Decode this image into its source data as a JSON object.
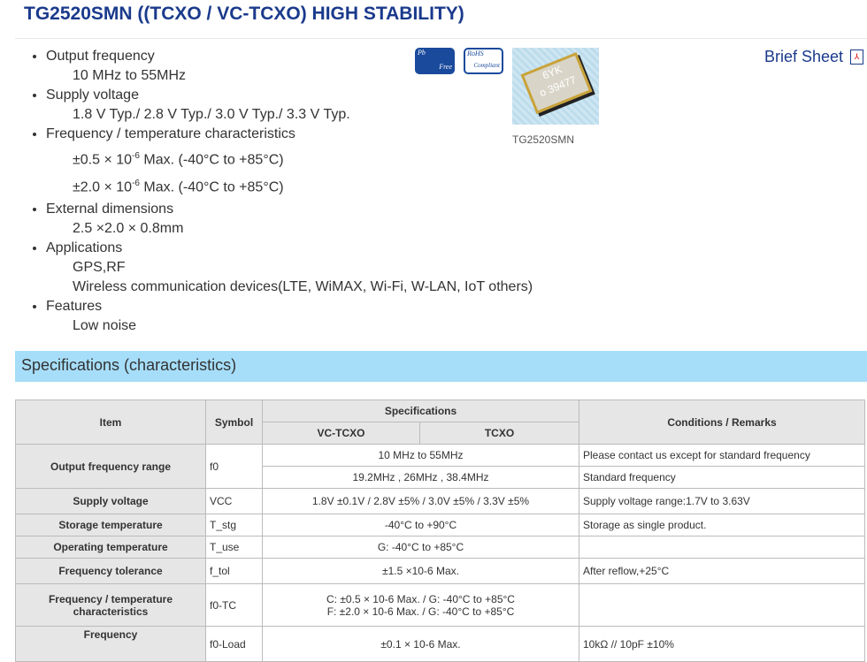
{
  "title": "TG2520SMN ((TCXO / VC-TCXO) HIGH STABILITY)",
  "features": [
    {
      "label": "Output frequency",
      "values": [
        "10 MHz to 55MHz"
      ]
    },
    {
      "label": "Supply voltage",
      "values": [
        "1.8 V Typ./ 2.8 V Typ./ 3.0 V Typ./ 3.3 V Typ."
      ]
    },
    {
      "label": "Frequency / temperature characteristics",
      "values": [
        "±0.5 × 10",
        "-6",
        " Max. (-40°C to +85°C)",
        "±2.0 × 10",
        "-6",
        " Max. (-40°C to +85°C)"
      ]
    },
    {
      "label": "External dimensions",
      "values": [
        "2.5 ×2.0 × 0.8mm"
      ]
    },
    {
      "label": "Applications",
      "values": [
        "GPS,RF",
        "Wireless communication devices(LTE, WiMAX, Wi-Fi, W-LAN, IoT others)"
      ]
    },
    {
      "label": "Features",
      "values": [
        "Low noise"
      ]
    }
  ],
  "badges": {
    "pb": [
      "Pb",
      "Free"
    ],
    "rohs": [
      "RoHS",
      "Compliant"
    ]
  },
  "product_image": {
    "marking": [
      "6YK",
      "o 39477"
    ],
    "caption": "TG2520SMN"
  },
  "brief_sheet": "Brief Sheet",
  "spec_heading": "Specifications (characteristics)",
  "table": {
    "headers": {
      "item": "Item",
      "symbol": "Symbol",
      "specs": "Specifications",
      "vc": "VC-TCXO",
      "tcxo": "TCXO",
      "cond": "Conditions / Remarks"
    },
    "rows": [
      {
        "item": "Output frequency range",
        "symbol": "f0",
        "spec": "10 MHz to 55MHz",
        "cond": "Please contact us except for standard frequency"
      },
      {
        "spec": "19.2MHz , 26MHz , 38.4MHz",
        "cond": "Standard frequency"
      },
      {
        "item": "Supply voltage",
        "symbol": "VCC",
        "spec": "1.8V ±0.1V / 2.8V ±5% / 3.0V ±5% / 3.3V ±5%",
        "cond": "Supply voltage range:1.7V to 3.63V"
      },
      {
        "item": "Storage temperature",
        "symbol": "T_stg",
        "spec": "-40°C to +90°C",
        "cond": "Storage as single product."
      },
      {
        "item": "Operating temperature",
        "symbol": "T_use",
        "spec": "G: -40°C to +85°C",
        "cond": ""
      },
      {
        "item": "Frequency tolerance",
        "symbol": "f_tol",
        "spec": "±1.5 ×10-6 Max.",
        "cond": "After reflow,+25°C"
      },
      {
        "item": "Frequency / temperature characteristics",
        "symbol": "f0-TC",
        "spec": "C: ±0.5 × 10-6 Max. / G: -40°C to +85°C",
        "spec2": "F: ±2.0 × 10-6 Max. / G: -40°C to +85°C",
        "cond": ""
      },
      {
        "item": "Frequency",
        "symbol": "f0-Load",
        "spec": "±0.1 × 10-6 Max.",
        "cond": "10kΩ // 10pF ±10%"
      }
    ]
  }
}
